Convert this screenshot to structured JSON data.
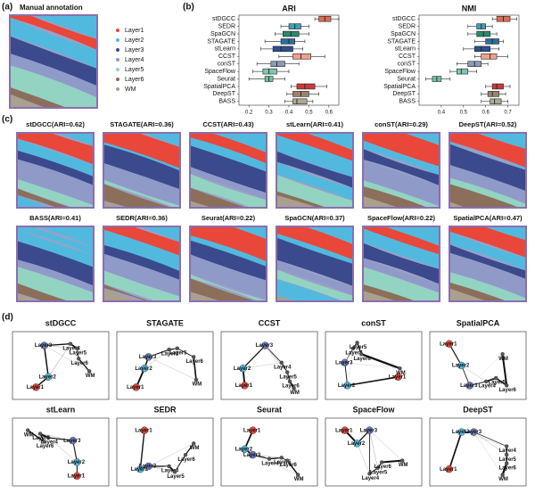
{
  "panels": [
    "(a)",
    "(b)",
    "(c)",
    "(d)"
  ],
  "annotation": {
    "title": "Manual annotation",
    "legend": [
      {
        "label": "Layer1",
        "color": "#e8473a"
      },
      {
        "label": "Layer2",
        "color": "#52b9de"
      },
      {
        "label": "Layer3",
        "color": "#3b4a8c"
      },
      {
        "label": "Layer4",
        "color": "#8f9ac8"
      },
      {
        "label": "Layer5",
        "color": "#93d3c2"
      },
      {
        "label": "Layer6",
        "color": "#8b6f5a"
      },
      {
        "label": "WM",
        "color": "#a9a08e"
      }
    ]
  },
  "chart_data": [
    {
      "type": "box",
      "title": "ARI",
      "categories": [
        "stDGCC",
        "SEDR",
        "SpaGCN",
        "STAGATE",
        "stLearn",
        "CCST",
        "conST",
        "SpaceFlow",
        "Seurat",
        "SpatialPCA",
        "DeepST",
        "BASS"
      ],
      "colors": [
        "#e06c55",
        "#3e9fb5",
        "#2a8a6e",
        "#2e6da0",
        "#2d4f8e",
        "#f0a08a",
        "#8c9bb8",
        "#7fc8b0",
        "#6fc3a0",
        "#c83a3a",
        "#9a8270",
        "#b0a890"
      ],
      "min": [
        0.53,
        0.36,
        0.33,
        0.28,
        0.26,
        0.35,
        0.24,
        0.22,
        0.2,
        0.41,
        0.39,
        0.38
      ],
      "q1": [
        0.55,
        0.4,
        0.37,
        0.36,
        0.32,
        0.42,
        0.31,
        0.27,
        0.28,
        0.44,
        0.42,
        0.42
      ],
      "median": [
        0.58,
        0.43,
        0.41,
        0.4,
        0.36,
        0.46,
        0.34,
        0.3,
        0.3,
        0.48,
        0.46,
        0.44
      ],
      "q3": [
        0.61,
        0.46,
        0.45,
        0.43,
        0.42,
        0.51,
        0.38,
        0.34,
        0.32,
        0.53,
        0.5,
        0.49
      ],
      "max": [
        0.65,
        0.5,
        0.5,
        0.48,
        0.47,
        0.58,
        0.45,
        0.4,
        0.38,
        0.59,
        0.55,
        0.52
      ],
      "xlim": [
        0.15,
        0.65
      ],
      "xticks": [
        0.2,
        0.3,
        0.4,
        0.5,
        0.6
      ]
    },
    {
      "type": "box",
      "title": "NMI",
      "categories": [
        "stDGCC",
        "SEDR",
        "SpaGCN",
        "STAGATE",
        "stLearn",
        "CCST",
        "conST",
        "SpaceFlow",
        "Seurat",
        "SpatialPCA",
        "DeepST",
        "BASS"
      ],
      "colors": [
        "#e06c55",
        "#3e9fb5",
        "#2a8a6e",
        "#2e6da0",
        "#2d4f8e",
        "#f0a08a",
        "#8c9bb8",
        "#7fc8b0",
        "#6fc3a0",
        "#c83a3a",
        "#9a8270",
        "#b0a890"
      ],
      "min": [
        0.63,
        0.52,
        0.52,
        0.55,
        0.5,
        0.55,
        0.47,
        0.44,
        0.33,
        0.6,
        0.58,
        0.58
      ],
      "q1": [
        0.65,
        0.56,
        0.56,
        0.6,
        0.55,
        0.58,
        0.52,
        0.47,
        0.36,
        0.63,
        0.61,
        0.62
      ],
      "median": [
        0.68,
        0.58,
        0.59,
        0.63,
        0.58,
        0.62,
        0.55,
        0.49,
        0.38,
        0.65,
        0.63,
        0.64
      ],
      "q3": [
        0.71,
        0.6,
        0.62,
        0.66,
        0.62,
        0.65,
        0.58,
        0.52,
        0.4,
        0.68,
        0.66,
        0.67
      ],
      "max": [
        0.74,
        0.63,
        0.65,
        0.68,
        0.66,
        0.7,
        0.61,
        0.56,
        0.44,
        0.71,
        0.69,
        0.7
      ],
      "xlim": [
        0.3,
        0.75
      ],
      "xticks": [
        0.4,
        0.5,
        0.6,
        0.7
      ]
    }
  ],
  "maps": [
    "stDGCC(ARI=0.62)",
    "STAGATE(ARI=0.36)",
    "CCST(ARI=0.43)",
    "stLearn(ARI=0.41)",
    "conST(ARI=0.29)",
    "DeepST(ARI=0.52)",
    "BASS(ARI=0.41)",
    "SEDR(ARI=0.36)",
    "Seurat(ARI=0.22)",
    "SpaGCN(ARI=0.37)",
    "SpaceFlow(ARI=0.22)",
    "SpatialPCA(ARI=0.47)"
  ],
  "networks": [
    {
      "title": "stDGCC",
      "nodes": [
        "Layer1",
        "Layer2",
        "Layer3",
        "Layer4",
        "Layer5",
        "Layer6",
        "WM"
      ]
    },
    {
      "title": "STAGATE",
      "nodes": [
        "Layer1",
        "Layer2",
        "Layer3",
        "Layer4",
        "Layer5",
        "Layer6",
        "WM"
      ]
    },
    {
      "title": "CCST",
      "nodes": [
        "Layer1",
        "Layer2",
        "Layer3",
        "Layer4",
        "Layer5",
        "Layer6",
        "WM"
      ]
    },
    {
      "title": "conST",
      "nodes": [
        "Layer1",
        "Layer2",
        "Layer3",
        "Layer4",
        "Layer5",
        "Layer6",
        "WM"
      ]
    },
    {
      "title": "SpatialPCA",
      "nodes": [
        "Layer1",
        "Layer2",
        "Layer3",
        "Layer4",
        "Layer5",
        "Layer6",
        "WM"
      ]
    },
    {
      "title": "stLearn",
      "nodes": [
        "Layer1",
        "Layer2",
        "Layer3",
        "Layer4",
        "Layer5",
        "Layer6",
        "WM"
      ]
    },
    {
      "title": "SEDR",
      "nodes": [
        "Layer1",
        "Layer2",
        "Layer3",
        "Layer4",
        "Layer5",
        "Layer6",
        "WM"
      ]
    },
    {
      "title": "Seurat",
      "nodes": [
        "Layer1",
        "Layer2",
        "Layer3",
        "Layer4",
        "Layer5",
        "Layer6",
        "WM"
      ]
    },
    {
      "title": "SpaceFlow",
      "nodes": [
        "Layer1",
        "Layer2",
        "Layer3",
        "Layer4",
        "Layer5",
        "Layer6",
        "WM"
      ]
    },
    {
      "title": "DeepST",
      "nodes": [
        "Layer1",
        "Layer2",
        "Layer3",
        "Layer4",
        "Layer5",
        "Layer6",
        "WM"
      ]
    }
  ]
}
